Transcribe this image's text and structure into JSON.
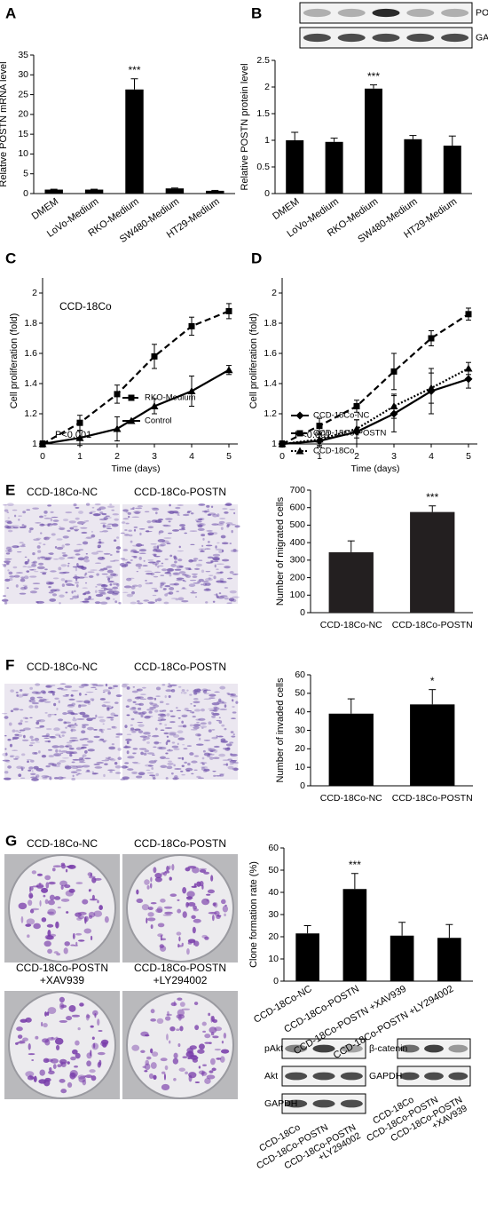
{
  "panels": [
    "A",
    "B",
    "C",
    "D",
    "E",
    "F",
    "G"
  ],
  "images": {
    "E": [
      "CCD-18Co-NC",
      "CCD-18Co-POSTN"
    ],
    "F": [
      "CCD-18Co-NC",
      "CCD-18Co-POSTN"
    ],
    "G": [
      [
        "CCD-18Co-NC"
      ],
      [
        "CCD-18Co-POSTN"
      ],
      [
        "CCD-18Co-POSTN",
        "+XAV939"
      ],
      [
        "CCD-18Co-POSTN",
        "+LY294002"
      ]
    ]
  },
  "blots": {
    "B": {
      "rows": [
        "POSTN",
        "GAPDH"
      ]
    },
    "G_akt": {
      "rows": [
        "pAkt",
        "Akt",
        "GAPDH"
      ],
      "lanes": [
        [
          "CCD-18Co"
        ],
        [
          "CCD-18Co-POSTN"
        ],
        [
          "CCD-18Co-POSTN",
          "+LY294002"
        ]
      ]
    },
    "G_catenin": {
      "rows": [
        "β-catenin",
        "GAPDH"
      ],
      "lanes": [
        [
          "CCD-18Co"
        ],
        [
          "CCD-18Co-POSTN"
        ],
        [
          "CCD-18Co-POSTN",
          "+XAV939"
        ]
      ]
    }
  },
  "chart_data": [
    {
      "type": "bar",
      "ylabel": "Relative POSTN mRNA level",
      "categories": [
        "DMEM",
        "LoVo-Medium",
        "RKO-Medium",
        "SW480-Medium",
        "HT29-Medium"
      ],
      "values": [
        1,
        1,
        26.3,
        1.3,
        0.7
      ],
      "errors": [
        0.1,
        0.1,
        2.7,
        0.1,
        0.1
      ],
      "significance": [
        null,
        null,
        "***",
        null,
        null
      ],
      "color": "#000000",
      "ylim": [
        0,
        35
      ],
      "yticks": [
        0,
        5,
        10,
        15,
        20,
        25,
        30,
        35
      ]
    },
    {
      "type": "bar",
      "ylabel": "Relative POSTN protein level",
      "categories": [
        "DMEM",
        "LoVo-Medium",
        "RKO-Medium",
        "SW480-Medium",
        "HT29-Medium"
      ],
      "values": [
        1,
        0.97,
        1.97,
        1.02,
        0.9
      ],
      "errors": [
        0.15,
        0.07,
        0.07,
        0.07,
        0.18
      ],
      "significance": [
        null,
        null,
        "***",
        null,
        null
      ],
      "color": "#000000",
      "ylim": [
        0,
        2.5
      ],
      "yticks": [
        0,
        0.5,
        1,
        1.5,
        2,
        2.5
      ]
    },
    {
      "type": "line",
      "title": "CCD-18Co",
      "note": "P<0.001",
      "xlabel": "Time (days)",
      "ylabel": "Cell proliferation (fold)",
      "x": [
        0,
        1,
        2,
        3,
        4,
        5
      ],
      "xlim": [
        0,
        5
      ],
      "xticks": [
        0,
        1,
        2,
        3,
        4,
        5
      ],
      "ylim": [
        1,
        2.1
      ],
      "yticks": [
        1,
        1.2,
        1.4,
        1.6,
        1.8,
        2
      ],
      "legend": "lower right",
      "series": [
        {
          "name": "RKO-Medium",
          "color": "#000000",
          "marker": "square",
          "dash": "dashed",
          "values": [
            1,
            1.14,
            1.33,
            1.58,
            1.78,
            1.88
          ],
          "errors": [
            0.02,
            0.05,
            0.06,
            0.08,
            0.06,
            0.05
          ]
        },
        {
          "name": "Control",
          "color": "#000000",
          "marker": "triangle",
          "dash": "solid",
          "values": [
            1,
            1.04,
            1.1,
            1.25,
            1.35,
            1.49
          ],
          "errors": [
            0.02,
            0.05,
            0.08,
            0.05,
            0.1,
            0.03
          ]
        }
      ]
    },
    {
      "type": "line",
      "note": "P<0.001",
      "xlabel": "Time (days)",
      "ylabel": "Cell proliferation (fold)",
      "x": [
        0,
        1,
        2,
        3,
        4,
        5
      ],
      "xlim": [
        0,
        5
      ],
      "xticks": [
        0,
        1,
        2,
        3,
        4,
        5
      ],
      "ylim": [
        1,
        2.1
      ],
      "yticks": [
        1,
        1.2,
        1.4,
        1.6,
        1.8,
        2
      ],
      "legend": "lower right",
      "series": [
        {
          "name": "CCD-18Co-NC",
          "color": "#000000",
          "marker": "diamond",
          "dash": "solid",
          "values": [
            1,
            1.02,
            1.08,
            1.2,
            1.35,
            1.43
          ],
          "errors": [
            0.02,
            0.04,
            0.08,
            0.12,
            0.15,
            0.06
          ]
        },
        {
          "name": "CCD-18Co-POSTN",
          "color": "#000000",
          "marker": "square",
          "dash": "dashed",
          "values": [
            1,
            1.12,
            1.25,
            1.48,
            1.7,
            1.86
          ],
          "errors": [
            0.02,
            0.05,
            0.04,
            0.12,
            0.05,
            0.04
          ]
        },
        {
          "name": "CCD-18Co",
          "color": "#000000",
          "marker": "triangle",
          "dash": "dotted",
          "values": [
            1,
            1.03,
            1.1,
            1.25,
            1.37,
            1.5
          ],
          "errors": [
            0.02,
            0.04,
            0.06,
            0.08,
            0.1,
            0.04
          ]
        }
      ]
    },
    {
      "type": "bar",
      "ylabel": "Number of migrated cells",
      "categories": [
        "CCD-18Co-NC",
        "CCD-18Co-POSTN"
      ],
      "values": [
        345,
        575
      ],
      "errors": [
        65,
        35
      ],
      "significance": [
        null,
        "***"
      ],
      "color": "#231f20",
      "ylim": [
        0,
        700
      ],
      "yticks": [
        0,
        100,
        200,
        300,
        400,
        500,
        600,
        700
      ]
    },
    {
      "type": "bar",
      "ylabel": "Number of invaded cells",
      "categories": [
        "CCD-18Co-NC",
        "CCD-18Co-POSTN"
      ],
      "values": [
        39,
        44
      ],
      "errors": [
        8,
        8
      ],
      "significance": [
        null,
        "*"
      ],
      "color": "#000000",
      "ylim": [
        0,
        60
      ],
      "yticks": [
        0,
        10,
        20,
        30,
        40,
        50,
        60
      ]
    },
    {
      "type": "bar",
      "ylabel": "Clone formation rate (%)",
      "categories": [
        "CCD-18Co-NC",
        "CCD-18Co-POSTN",
        "CCD-18Co-POSTN +XAV939",
        "CCD-18Co-POSTN +LY294002"
      ],
      "values": [
        21.5,
        41.5,
        20.5,
        19.5
      ],
      "errors": [
        3.5,
        7,
        6,
        6
      ],
      "significance": [
        null,
        "***",
        null,
        null
      ],
      "color": "#000000",
      "ylim": [
        0,
        60
      ],
      "yticks": [
        0,
        10,
        20,
        30,
        40,
        50,
        60
      ]
    }
  ]
}
